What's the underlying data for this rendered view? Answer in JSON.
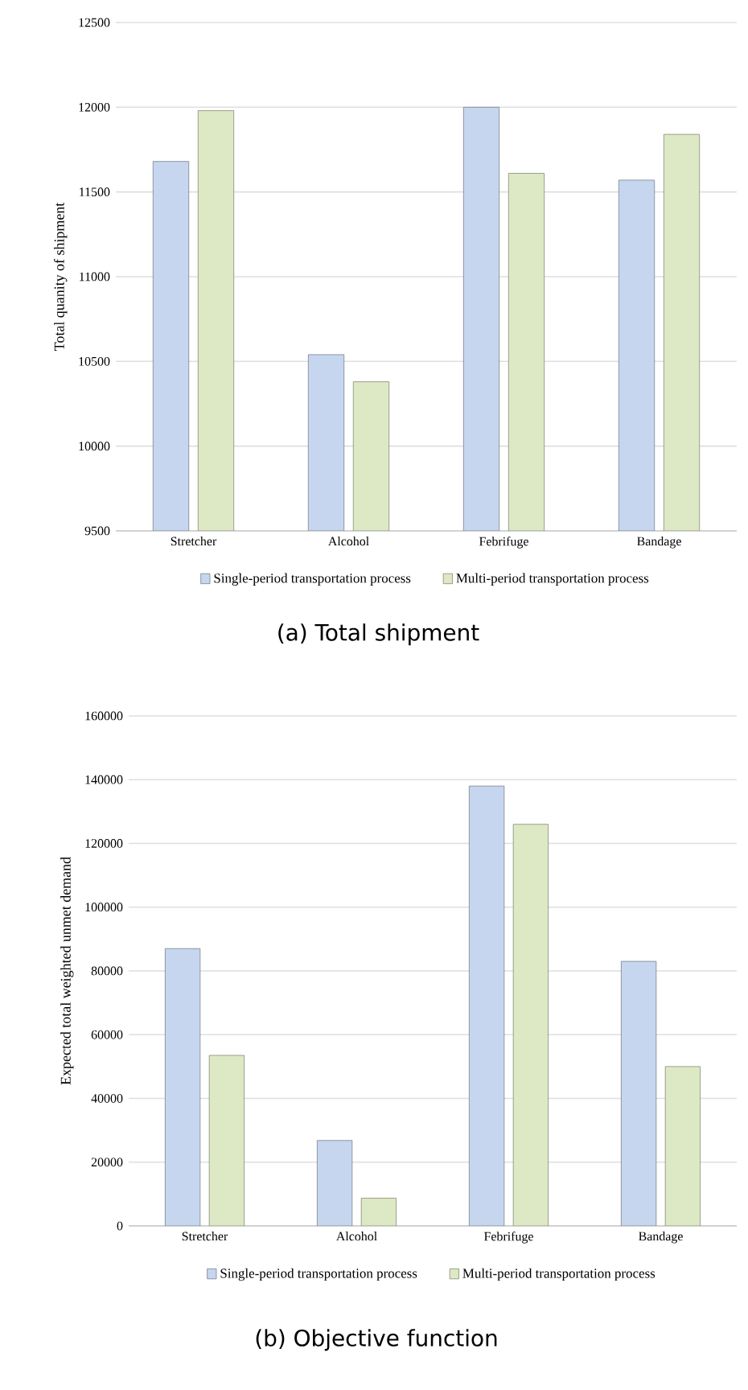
{
  "chart_data": [
    {
      "type": "bar",
      "title": "(a) Total shipment",
      "ylabel": "Total quanity of shipment",
      "categories": [
        "Stretcher",
        "Alcohol",
        "Febrifuge",
        "Bandage"
      ],
      "series": [
        {
          "name": "Single-period transportation process",
          "color": "#c6d6ee",
          "values": [
            11680,
            10540,
            12000,
            11570
          ]
        },
        {
          "name": "Multi-period transportation process",
          "color": "#dde8c4",
          "values": [
            11980,
            10380,
            11610,
            11840
          ]
        }
      ],
      "ylim": [
        9500,
        12500
      ],
      "yticks": [
        9500,
        10000,
        10500,
        11000,
        11500,
        12000,
        12500
      ],
      "grid": "y",
      "legend": "bottom"
    },
    {
      "type": "bar",
      "title": "(b) Objective function",
      "ylabel": "Expected total weighted unmet demand",
      "categories": [
        "Stretcher",
        "Alcohol",
        "Febrifuge",
        "Bandage"
      ],
      "series": [
        {
          "name": "Single-period transportation process",
          "color": "#c6d6ee",
          "values": [
            87000,
            26800,
            138000,
            83000
          ]
        },
        {
          "name": "Multi-period transportation process",
          "color": "#dde8c4",
          "values": [
            53500,
            8700,
            126000,
            50000
          ]
        }
      ],
      "ylim": [
        0,
        160000
      ],
      "yticks": [
        0,
        20000,
        40000,
        60000,
        80000,
        100000,
        120000,
        140000,
        160000
      ],
      "grid": "y",
      "legend": "bottom"
    }
  ]
}
